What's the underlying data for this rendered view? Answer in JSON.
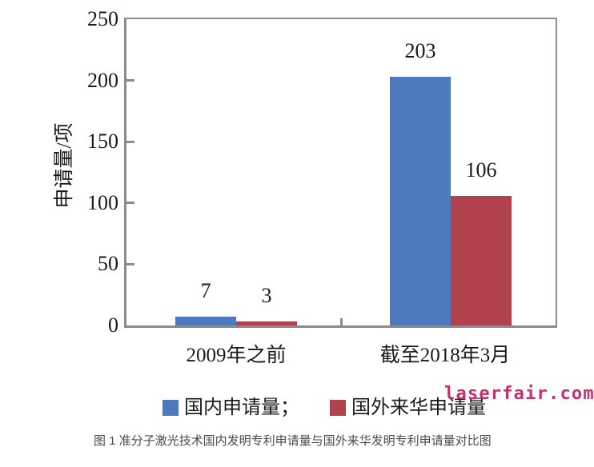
{
  "chart_data": {
    "type": "bar",
    "categories": [
      "2009年之前",
      "截至2018年3月"
    ],
    "series": [
      {
        "name": "国内申请量",
        "values": [
          7,
          203
        ],
        "color": "#4e79bd"
      },
      {
        "name": "国外来华申请量",
        "values": [
          3,
          106
        ],
        "color": "#b2414e"
      }
    ],
    "ylabel": "申请量/项",
    "ylim": [
      0,
      250
    ],
    "yticks": [
      0,
      50,
      100,
      150,
      200,
      250
    ],
    "grid": false,
    "legend_position": "bottom",
    "value_labels": true
  },
  "legend": {
    "items": [
      {
        "label": "国内申请量；"
      },
      {
        "label": "国外来华申请量"
      }
    ]
  },
  "watermark": "laserfair.com",
  "caption": "图 1 准分子激光技术国内发明专利申请量与国外来华发明专利申请量对比图",
  "colors": {
    "axis": "#8b8b8b",
    "text": "#1a1a1a",
    "series_blue": "#4e79bd",
    "series_red": "#b2414e",
    "watermark": "#c62f6e",
    "caption": "#4a4a4a"
  }
}
